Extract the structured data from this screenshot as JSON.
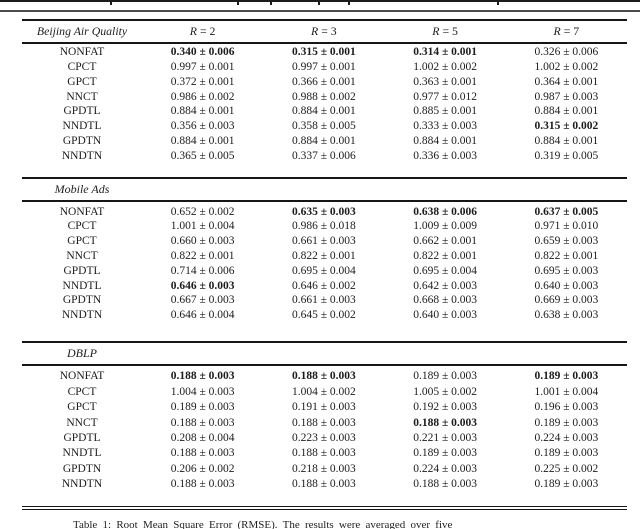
{
  "document": {
    "caption": "Table 1: Root Mean Square Error (RMSE). The results were averaged over five"
  },
  "table": {
    "col_headers": [
      {
        "sym": "R",
        "eq": "= 2"
      },
      {
        "sym": "R",
        "eq": "= 3"
      },
      {
        "sym": "R",
        "eq": "= 5"
      },
      {
        "sym": "R",
        "eq": "= 7"
      }
    ],
    "sections": [
      {
        "label": "Beijing Air Quality",
        "rows": [
          {
            "method": "NONFAT",
            "values": [
              "0.340 ± 0.006",
              "0.315 ± 0.001",
              "0.314 ± 0.001",
              "0.326 ± 0.006"
            ],
            "bold": [
              true,
              true,
              true,
              false
            ]
          },
          {
            "method": "CPCT",
            "values": [
              "0.997 ± 0.001",
              "0.997 ± 0.001",
              "1.002 ± 0.002",
              "1.002 ± 0.002"
            ],
            "bold": [
              false,
              false,
              false,
              false
            ]
          },
          {
            "method": "GPCT",
            "values": [
              "0.372 ± 0.001",
              "0.366 ± 0.001",
              "0.363 ± 0.001",
              "0.364 ± 0.001"
            ],
            "bold": [
              false,
              false,
              false,
              false
            ]
          },
          {
            "method": "NNCT",
            "values": [
              "0.986 ± 0.002",
              "0.988 ± 0.002",
              "0.977 ± 0.012",
              "0.987 ± 0.003"
            ],
            "bold": [
              false,
              false,
              false,
              false
            ]
          },
          {
            "method": "GPDTL",
            "values": [
              "0.884 ± 0.001",
              "0.884 ± 0.001",
              "0.885 ± 0.001",
              "0.884 ± 0.001"
            ],
            "bold": [
              false,
              false,
              false,
              false
            ]
          },
          {
            "method": "NNDTL",
            "values": [
              "0.356 ± 0.003",
              "0.358 ± 0.005",
              "0.333 ± 0.003",
              "0.315 ± 0.002"
            ],
            "bold": [
              false,
              false,
              false,
              true
            ]
          },
          {
            "method": "GPDTN",
            "values": [
              "0.884 ± 0.001",
              "0.884 ± 0.001",
              "0.884 ± 0.001",
              "0.884 ± 0.001"
            ],
            "bold": [
              false,
              false,
              false,
              false
            ]
          },
          {
            "method": "NNDTN",
            "values": [
              "0.365 ± 0.005",
              "0.337 ± 0.006",
              "0.336 ± 0.003",
              "0.319 ± 0.005"
            ],
            "bold": [
              false,
              false,
              false,
              false
            ]
          }
        ]
      },
      {
        "label": "Mobile Ads",
        "rows": [
          {
            "method": "NONFAT",
            "values": [
              "0.652 ± 0.002",
              "0.635 ± 0.003",
              "0.638 ± 0.006",
              "0.637 ± 0.005"
            ],
            "bold": [
              false,
              true,
              true,
              true
            ]
          },
          {
            "method": "CPCT",
            "values": [
              "1.001 ± 0.004",
              "0.986 ± 0.018",
              "1.009 ± 0.009",
              "0.971 ± 0.010"
            ],
            "bold": [
              false,
              false,
              false,
              false
            ]
          },
          {
            "method": "GPCT",
            "values": [
              "0.660 ± 0.003",
              "0.661 ± 0.003",
              "0.662 ± 0.001",
              "0.659 ± 0.003"
            ],
            "bold": [
              false,
              false,
              false,
              false
            ]
          },
          {
            "method": "NNCT",
            "values": [
              "0.822 ± 0.001",
              "0.822 ± 0.001",
              "0.822 ± 0.001",
              "0.822 ± 0.001"
            ],
            "bold": [
              false,
              false,
              false,
              false
            ]
          },
          {
            "method": "GPDTL",
            "values": [
              "0.714 ± 0.006",
              "0.695 ± 0.004",
              "0.695 ± 0.004",
              "0.695 ± 0.003"
            ],
            "bold": [
              false,
              false,
              false,
              false
            ]
          },
          {
            "method": "NNDTL",
            "values": [
              "0.646 ± 0.003",
              "0.646 ± 0.002",
              "0.642 ± 0.003",
              "0.640 ± 0.003"
            ],
            "bold": [
              true,
              false,
              false,
              false
            ]
          },
          {
            "method": "GPDTN",
            "values": [
              "0.667 ± 0.003",
              "0.661 ± 0.003",
              "0.668 ± 0.003",
              "0.669 ± 0.003"
            ],
            "bold": [
              false,
              false,
              false,
              false
            ]
          },
          {
            "method": "NNDTN",
            "values": [
              "0.646 ± 0.004",
              "0.645 ± 0.002",
              "0.640 ± 0.003",
              "0.638 ± 0.003"
            ],
            "bold": [
              false,
              false,
              false,
              false
            ]
          }
        ]
      },
      {
        "label": "DBLP",
        "rows": [
          {
            "method": "NONFAT",
            "values": [
              "0.188 ± 0.003",
              "0.188 ± 0.003",
              "0.189 ± 0.003",
              "0.189 ± 0.003"
            ],
            "bold": [
              true,
              true,
              false,
              true
            ]
          },
          {
            "method": "CPCT",
            "values": [
              "1.004 ± 0.003",
              "1.004 ± 0.002",
              "1.005 ± 0.002",
              "1.001 ± 0.004"
            ],
            "bold": [
              false,
              false,
              false,
              false
            ]
          },
          {
            "method": "GPCT",
            "values": [
              "0.189 ± 0.003",
              "0.191 ± 0.003",
              "0.192 ± 0.003",
              "0.196 ± 0.003"
            ],
            "bold": [
              false,
              false,
              false,
              false
            ]
          },
          {
            "method": "NNCT",
            "values": [
              "0.188 ± 0.003",
              "0.188 ± 0.003",
              "0.188 ± 0.003",
              "0.189 ± 0.003"
            ],
            "bold": [
              false,
              false,
              true,
              false
            ]
          },
          {
            "method": "GPDTL",
            "values": [
              "0.208 ± 0.004",
              "0.223 ± 0.003",
              "0.221 ± 0.003",
              "0.224 ± 0.003"
            ],
            "bold": [
              false,
              false,
              false,
              false
            ]
          },
          {
            "method": "NNDTL",
            "values": [
              "0.188 ± 0.003",
              "0.188 ± 0.003",
              "0.189 ± 0.003",
              "0.189 ± 0.003"
            ],
            "bold": [
              false,
              false,
              false,
              false
            ]
          },
          {
            "method": "GPDTN",
            "values": [
              "0.206 ± 0.002",
              "0.218 ± 0.003",
              "0.224 ± 0.003",
              "0.225 ± 0.002"
            ],
            "bold": [
              false,
              false,
              false,
              false
            ]
          },
          {
            "method": "NNDTN",
            "values": [
              "0.188 ± 0.003",
              "0.188 ± 0.003",
              "0.188 ± 0.003",
              "0.189 ± 0.003"
            ],
            "bold": [
              false,
              false,
              false,
              false
            ]
          }
        ]
      }
    ]
  },
  "colors": {
    "text": "#1c1c1c",
    "rule": "#161616"
  }
}
